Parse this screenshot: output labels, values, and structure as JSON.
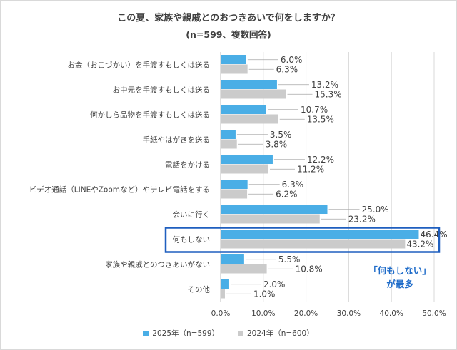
{
  "colors": {
    "series_2025": "#4aaee6",
    "series_2024": "#cbcbcb",
    "highlight_border": "#1f5fbf",
    "annotation_text": "#1f6cc9"
  },
  "chart_data": {
    "type": "bar",
    "orientation": "horizontal",
    "title": "この夏、家族や親戚とのおつきあいで何をしますか？",
    "subtitle": "(n=599、複数回答)",
    "categories": [
      "お金（おこづかい）を手渡すもしくは送る",
      "お中元を手渡すもしくは送る",
      "何かしら品物を手渡すもしくは送る",
      "手紙やはがきを送る",
      "電話をかける",
      "ビデオ通話（LINEやZoomなど）やテレビ電話をする",
      "会いに行く",
      "何もしない",
      "家族や親戚とのつきあいがない",
      "その他"
    ],
    "series": [
      {
        "name": "2025年（n=599）",
        "values": [
          6.0,
          13.2,
          10.7,
          3.5,
          12.2,
          6.3,
          25.0,
          46.4,
          5.5,
          2.0
        ]
      },
      {
        "name": "2024年（n=600）",
        "values": [
          6.3,
          15.3,
          13.5,
          3.8,
          11.2,
          6.2,
          23.2,
          43.2,
          10.8,
          1.0
        ]
      }
    ],
    "value_labels": [
      [
        "6.0%",
        "13.2%",
        "10.7%",
        "3.5%",
        "12.2%",
        "6.3%",
        "25.0%",
        "46.4%",
        "5.5%",
        "2.0%"
      ],
      [
        "6.3%",
        "15.3%",
        "13.5%",
        "3.8%",
        "11.2%",
        "6.2%",
        "23.2%",
        "43.2%",
        "10.8%",
        "1.0%"
      ]
    ],
    "x_ticks": [
      "0.0%",
      "10.0%",
      "20.0%",
      "30.0%",
      "40.0%",
      "50.0%"
    ],
    "xlim": [
      0,
      50
    ],
    "xlabel": "",
    "ylabel": "",
    "grid": true,
    "legend_position": "bottom",
    "highlight_category": "何もしない",
    "annotation": [
      "「何もしない」",
      "が最多"
    ]
  }
}
